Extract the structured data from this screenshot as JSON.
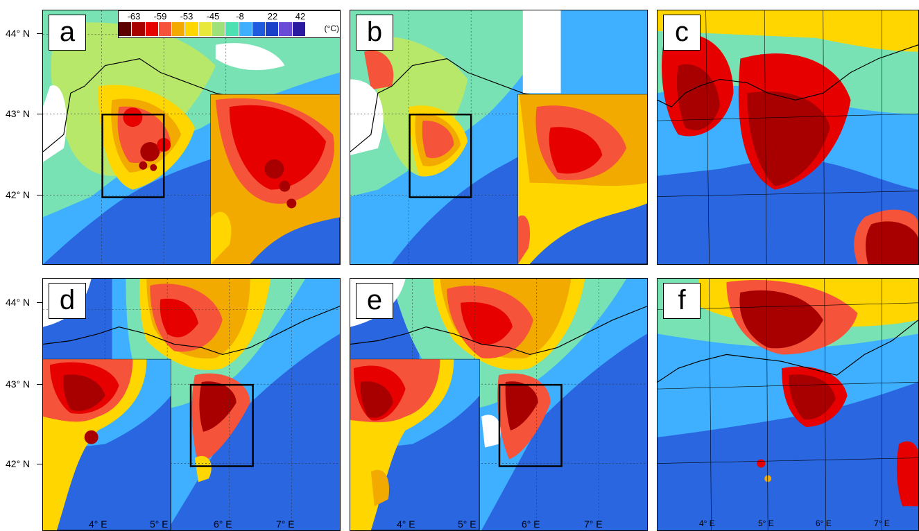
{
  "panels": [
    {
      "label": "a"
    },
    {
      "label": "b"
    },
    {
      "label": "c"
    },
    {
      "label": "d"
    },
    {
      "label": "e"
    },
    {
      "label": "f"
    }
  ],
  "lat_labels": [
    "44° N",
    "43° N",
    "42° N",
    "44° N",
    "43° N",
    "42° N"
  ],
  "lon_labels": [
    "4° E",
    "5° E",
    "6° E",
    "7° E",
    "4° E",
    "5° E",
    "6° E",
    "7° E",
    "4° E",
    "5° E",
    "6° E",
    "7° E"
  ],
  "colorbar": {
    "ticks": [
      "-63",
      "-59",
      "-53",
      "-45",
      "-8",
      "22",
      "42"
    ],
    "unit": "(°C)",
    "colors": [
      "#5c0000",
      "#a80000",
      "#e60000",
      "#f5533a",
      "#f2a900",
      "#ffd600",
      "#e8e83c",
      "#9fe07a",
      "#4de0b0",
      "#3fb0ff",
      "#1f5bdc",
      "#1a3fc8",
      "#6a4bd8",
      "#2a1aa0"
    ]
  }
}
